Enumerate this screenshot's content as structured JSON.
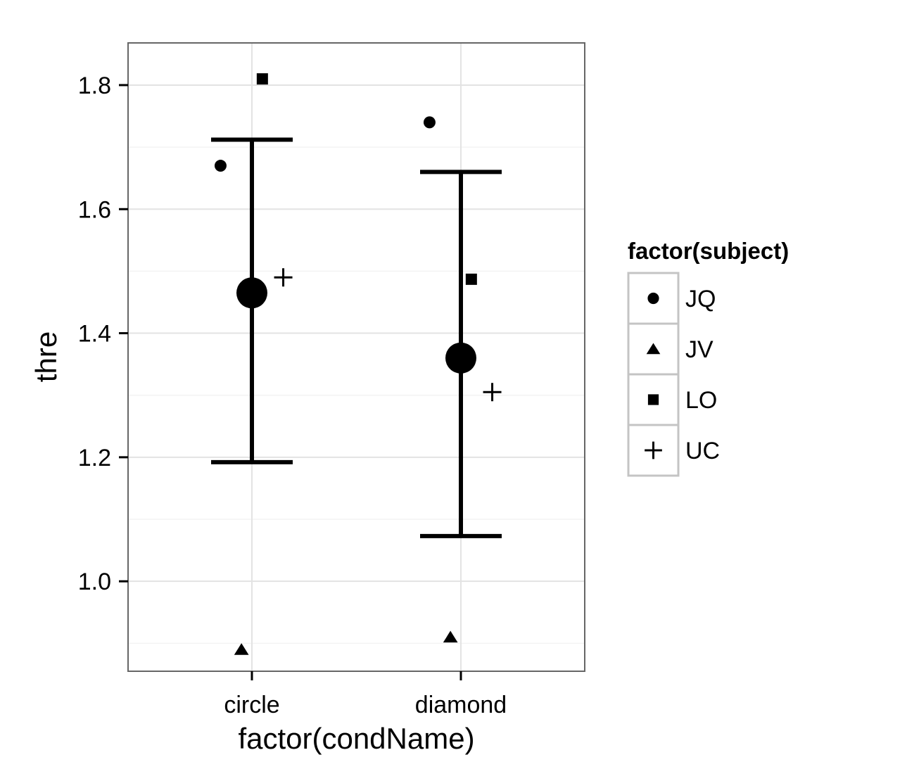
{
  "chart_data": {
    "type": "scatter",
    "title": "",
    "xlabel": "factor(condName)",
    "ylabel": "thre",
    "categories": [
      "circle",
      "diamond"
    ],
    "ylim": [
      0.855,
      1.868
    ],
    "yticks": [
      1.0,
      1.2,
      1.4,
      1.6,
      1.8
    ],
    "ytick_labels": [
      "1.0",
      "1.2",
      "1.4",
      "1.6",
      "1.8"
    ],
    "grid": true,
    "legend": {
      "title": "factor(subject)",
      "placement": "right",
      "entries": [
        {
          "label": "JQ",
          "shape": "circle"
        },
        {
          "label": "JV",
          "shape": "triangle"
        },
        {
          "label": "LO",
          "shape": "square"
        },
        {
          "label": "UC",
          "shape": "plus"
        }
      ]
    },
    "points": [
      {
        "subject": "JQ",
        "category": "circle",
        "offset": -0.15,
        "y": 1.67
      },
      {
        "subject": "JV",
        "category": "circle",
        "offset": -0.05,
        "y": 0.89
      },
      {
        "subject": "LO",
        "category": "circle",
        "offset": 0.05,
        "y": 1.81
      },
      {
        "subject": "UC",
        "category": "circle",
        "offset": 0.15,
        "y": 1.49
      },
      {
        "subject": "JQ",
        "category": "diamond",
        "offset": -0.15,
        "y": 1.74
      },
      {
        "subject": "JV",
        "category": "diamond",
        "offset": -0.05,
        "y": 0.91
      },
      {
        "subject": "LO",
        "category": "diamond",
        "offset": 0.05,
        "y": 1.487
      },
      {
        "subject": "UC",
        "category": "diamond",
        "offset": 0.15,
        "y": 1.305
      }
    ],
    "summary": [
      {
        "category": "circle",
        "mean": 1.465,
        "lower": 1.192,
        "upper": 1.712
      },
      {
        "category": "diamond",
        "mean": 1.36,
        "lower": 1.073,
        "upper": 1.66
      }
    ],
    "colors": {
      "marks": "#000000",
      "panel_border": "#666666",
      "grid": "#e6e6e6",
      "legend_border": "#c4c4c4"
    }
  }
}
